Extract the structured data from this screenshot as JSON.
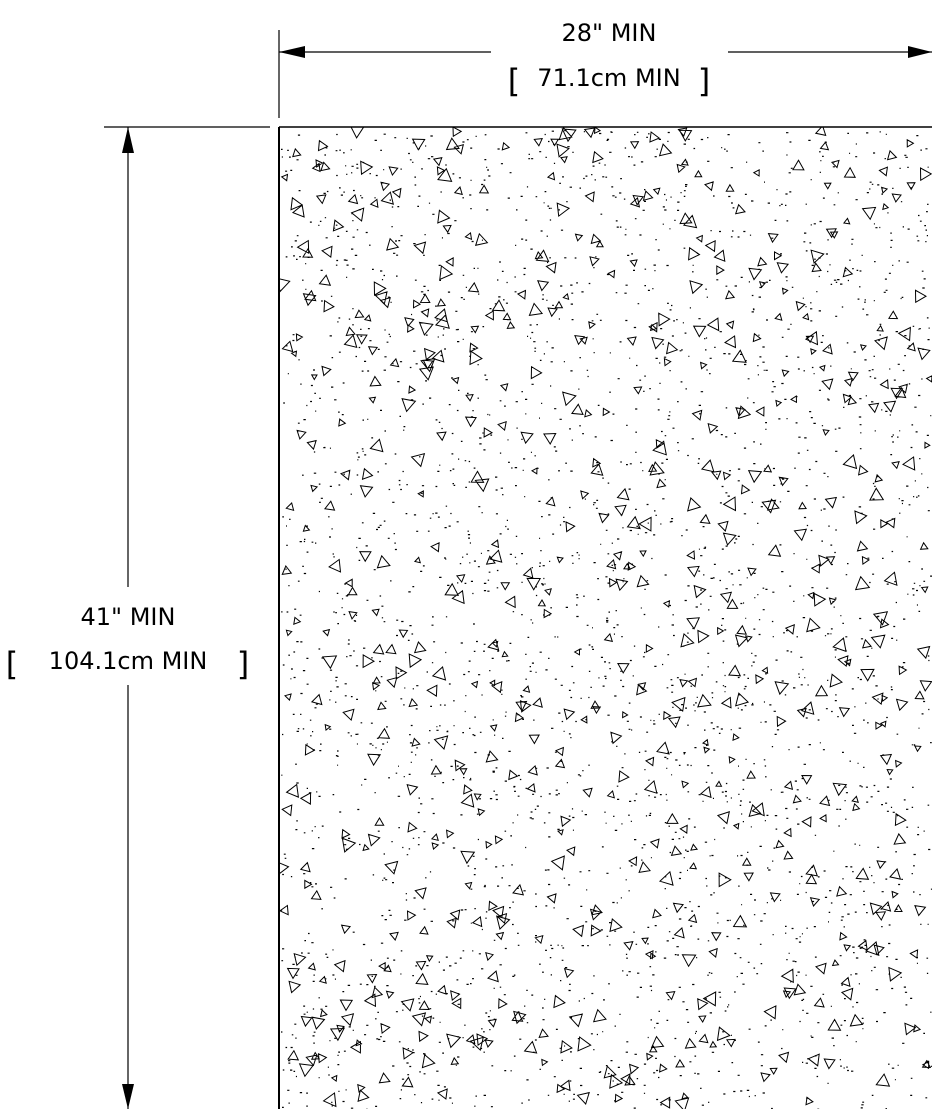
{
  "dimensions": {
    "width": {
      "imperial": "28\" MIN",
      "metric": "71.1cm MIN"
    },
    "height": {
      "imperial": "41\" MIN",
      "metric": "104.1cm MIN"
    }
  },
  "pattern": "concrete-hatch"
}
